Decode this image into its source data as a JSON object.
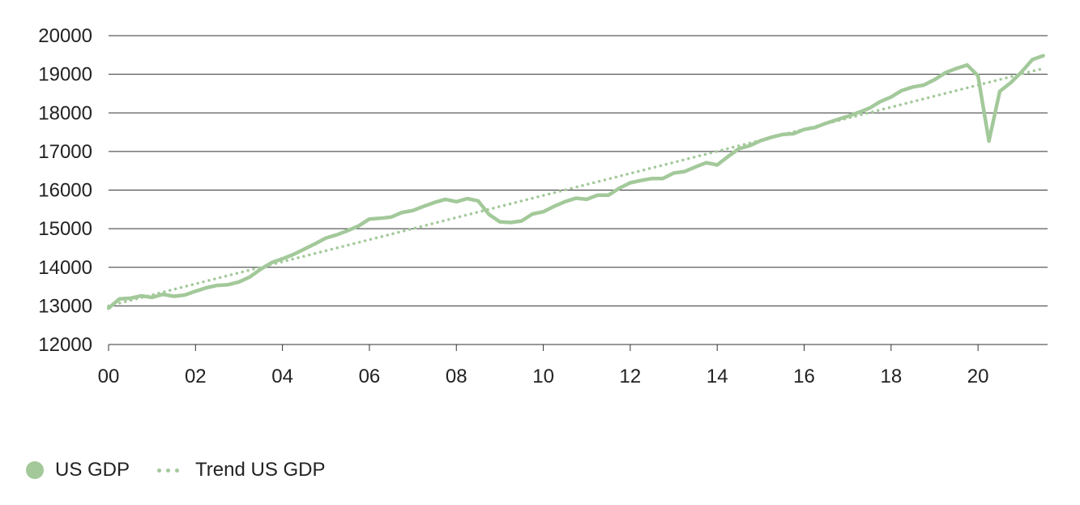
{
  "chart_data": {
    "type": "line",
    "title": "",
    "xlabel": "",
    "ylabel": "",
    "xlim": [
      2000,
      2021.6
    ],
    "ylim": [
      12000,
      20000
    ],
    "yticks": [
      12000,
      13000,
      14000,
      15000,
      16000,
      17000,
      18000,
      19000,
      20000
    ],
    "yticklabels": [
      "12000",
      "13000",
      "14000",
      "15000",
      "16000",
      "17000",
      "18000",
      "19000",
      "20000"
    ],
    "xticks": [
      2000,
      2002,
      2004,
      2006,
      2008,
      2010,
      2012,
      2014,
      2016,
      2018,
      2020
    ],
    "xticklabels": [
      "00",
      "02",
      "04",
      "06",
      "08",
      "10",
      "12",
      "14",
      "16",
      "18",
      "20"
    ],
    "grid": "horizontal",
    "legend_position": "bottom-left",
    "colors": {
      "series": "#a3c99a",
      "gridline": "#333333",
      "text": "#222222"
    },
    "series": [
      {
        "name": "US GDP",
        "style": "solid",
        "x": [
          2000.0,
          2000.25,
          2000.5,
          2000.75,
          2001.0,
          2001.25,
          2001.5,
          2001.75,
          2002.0,
          2002.25,
          2002.5,
          2002.75,
          2003.0,
          2003.25,
          2003.5,
          2003.75,
          2004.0,
          2004.25,
          2004.5,
          2004.75,
          2005.0,
          2005.25,
          2005.5,
          2005.75,
          2006.0,
          2006.25,
          2006.5,
          2006.75,
          2007.0,
          2007.25,
          2007.5,
          2007.75,
          2008.0,
          2008.25,
          2008.5,
          2008.75,
          2009.0,
          2009.25,
          2009.5,
          2009.75,
          2010.0,
          2010.25,
          2010.5,
          2010.75,
          2011.0,
          2011.25,
          2011.5,
          2011.75,
          2012.0,
          2012.25,
          2012.5,
          2012.75,
          2013.0,
          2013.25,
          2013.5,
          2013.75,
          2014.0,
          2014.25,
          2014.5,
          2014.75,
          2015.0,
          2015.25,
          2015.5,
          2015.75,
          2016.0,
          2016.25,
          2016.5,
          2016.75,
          2017.0,
          2017.25,
          2017.5,
          2017.75,
          2018.0,
          2018.25,
          2018.5,
          2018.75,
          2019.0,
          2019.25,
          2019.5,
          2019.75,
          2020.0,
          2020.25,
          2020.5,
          2020.75,
          2021.0,
          2021.25,
          2021.5
        ],
        "values": [
          12940,
          13180,
          13200,
          13260,
          13220,
          13300,
          13250,
          13280,
          13380,
          13470,
          13530,
          13550,
          13620,
          13750,
          13950,
          14120,
          14220,
          14330,
          14470,
          14610,
          14760,
          14840,
          14950,
          15070,
          15250,
          15270,
          15300,
          15420,
          15470,
          15580,
          15680,
          15760,
          15700,
          15780,
          15720,
          15370,
          15180,
          15160,
          15200,
          15380,
          15440,
          15580,
          15700,
          15790,
          15760,
          15870,
          15870,
          16050,
          16190,
          16250,
          16300,
          16300,
          16440,
          16480,
          16600,
          16710,
          16650,
          16870,
          17070,
          17150,
          17280,
          17370,
          17440,
          17460,
          17570,
          17620,
          17730,
          17820,
          17910,
          18010,
          18120,
          18290,
          18410,
          18580,
          18670,
          18720,
          18860,
          19040,
          19150,
          19240,
          18960,
          17270,
          18560,
          18780,
          19060,
          19380,
          19480
        ]
      },
      {
        "name": "Trend US GDP",
        "style": "dotted",
        "x": [
          2000.0,
          2021.5
        ],
        "values": [
          13000,
          19150
        ]
      }
    ]
  }
}
